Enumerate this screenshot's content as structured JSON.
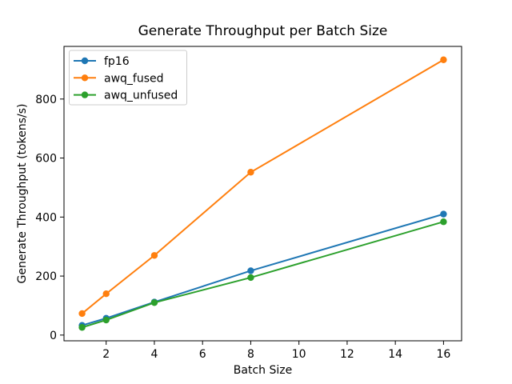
{
  "chart_data": {
    "type": "line",
    "title": "Generate Throughput per Batch Size",
    "xlabel": "Batch Size",
    "ylabel": "Generate Throughput (tokens/s)",
    "x": [
      1,
      2,
      4,
      8,
      16
    ],
    "series": [
      {
        "name": "fp16",
        "color": "#1f77b4",
        "values": [
          33,
          57,
          112,
          218,
          410
        ]
      },
      {
        "name": "awq_fused",
        "color": "#ff7f0e",
        "values": [
          73,
          140,
          270,
          552,
          933
        ]
      },
      {
        "name": "awq_unfused",
        "color": "#2ca02c",
        "values": [
          26,
          51,
          110,
          195,
          384
        ]
      }
    ],
    "xticks": [
      2,
      4,
      6,
      8,
      10,
      12,
      14,
      16
    ],
    "yticks": [
      0,
      200,
      400,
      600,
      800
    ],
    "xlim": [
      0.25,
      16.75
    ],
    "ylim": [
      -19.4,
      978.4
    ],
    "grid": false,
    "marker": "circle",
    "legend": {
      "position": "upper left",
      "entries": [
        "fp16",
        "awq_fused",
        "awq_unfused"
      ]
    },
    "background_color": "#ffffff",
    "axis_color": "#000000",
    "legend_border_color": "#cccccc"
  }
}
